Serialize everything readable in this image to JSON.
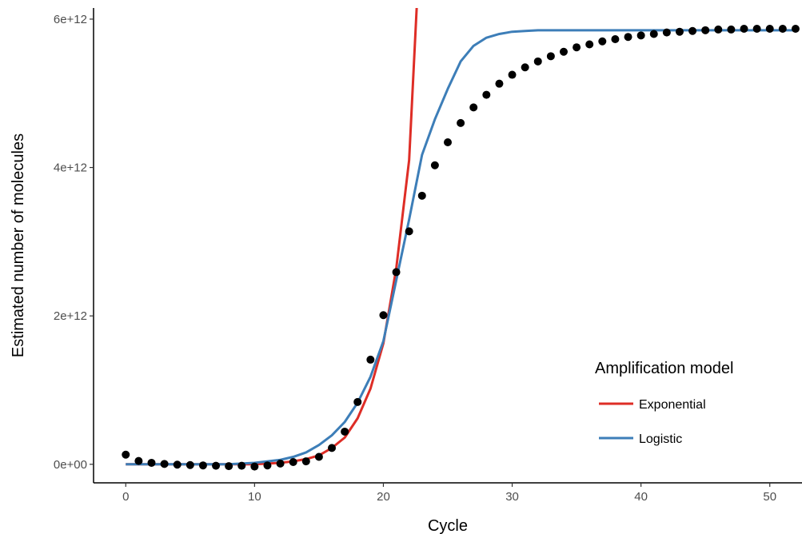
{
  "chart_data": {
    "type": "line",
    "xlabel": "Cycle",
    "ylabel": "Estimated number of molecules",
    "xlim": [
      -2.5,
      52.5
    ],
    "ylim": [
      -250000000000.0,
      6150000000000.0
    ],
    "x_ticks": [
      0,
      10,
      20,
      30,
      40,
      50
    ],
    "x_tick_labels": [
      "0",
      "10",
      "20",
      "30",
      "40",
      "50"
    ],
    "y_ticks": [
      0,
      2000000000000.0,
      4000000000000.0,
      6000000000000.0
    ],
    "y_tick_labels": [
      "0e+00",
      "2e+12",
      "4e+12",
      "6e+12"
    ],
    "grid": false,
    "legend": {
      "title": "Amplification model",
      "position": "bottom-right",
      "entries": [
        {
          "label": "Exponential",
          "color": "#de2d26"
        },
        {
          "label": "Logistic",
          "color": "#3d7eb8"
        }
      ]
    },
    "observed": {
      "marker": "point",
      "color": "#000000",
      "x": [
        0,
        1,
        2,
        3,
        4,
        5,
        6,
        7,
        8,
        9,
        10,
        11,
        12,
        13,
        14,
        15,
        16,
        17,
        18,
        19,
        20,
        21,
        22,
        23,
        24,
        25,
        26,
        27,
        28,
        29,
        30,
        31,
        32,
        33,
        34,
        35,
        36,
        37,
        38,
        39,
        40,
        41,
        42,
        43,
        44,
        45,
        46,
        47,
        48,
        49,
        50,
        51,
        52
      ],
      "y": [
        130000000000.0,
        45000000000.0,
        20000000000.0,
        5000000000.0,
        -5000000000.0,
        -10000000000.0,
        -15000000000.0,
        -20000000000.0,
        -25000000000.0,
        -20000000000.0,
        -30000000000.0,
        -15000000000.0,
        10000000000.0,
        30000000000.0,
        40000000000.0,
        100000000000.0,
        220000000000.0,
        440000000000.0,
        840000000000.0,
        1410000000000.0,
        2010000000000.0,
        2590000000000.0,
        3140000000000.0,
        3620000000000.0,
        4030000000000.0,
        4340000000000.0,
        4600000000000.0,
        4810000000000.0,
        4980000000000.0,
        5130000000000.0,
        5250000000000.0,
        5350000000000.0,
        5430000000000.0,
        5500000000000.0,
        5560000000000.0,
        5620000000000.0,
        5660000000000.0,
        5700000000000.0,
        5730000000000.0,
        5760000000000.0,
        5780000000000.0,
        5800000000000.0,
        5820000000000.0,
        5830000000000.0,
        5840000000000.0,
        5850000000000.0,
        5860000000000.0,
        5860000000000.0,
        5870000000000.0,
        5870000000000.0,
        5870000000000.0,
        5870000000000.0,
        5870000000000.0
      ]
    },
    "series": [
      {
        "name": "Exponential",
        "color": "#de2d26",
        "x": [
          0,
          1,
          2,
          3,
          4,
          5,
          6,
          7,
          8,
          9,
          10,
          11,
          12,
          13,
          14,
          15,
          16,
          17,
          18,
          19,
          20,
          21,
          22,
          22.6
        ],
        "y": [
          0,
          0,
          0,
          0,
          0,
          0,
          0,
          0,
          0,
          0,
          0,
          10000000000.0,
          20000000000.0,
          40000000000.0,
          70000000000.0,
          120000000000.0,
          220000000000.0,
          360000000000.0,
          620000000000.0,
          1020000000000.0,
          1630000000000.0,
          2640000000000.0,
          4100000000000.0,
          6200000000000.0
        ]
      },
      {
        "name": "Logistic",
        "color": "#3d7eb8",
        "x": [
          0,
          1,
          2,
          3,
          4,
          5,
          6,
          7,
          8,
          9,
          10,
          11,
          12,
          13,
          14,
          15,
          16,
          17,
          18,
          19,
          20,
          21,
          22,
          23,
          24,
          25,
          26,
          27,
          28,
          29,
          30,
          31,
          32,
          33,
          34,
          35,
          36,
          37,
          38,
          39,
          40,
          41,
          42,
          43,
          44,
          45,
          46,
          47,
          48,
          49,
          50,
          51,
          52
        ],
        "y": [
          0,
          0,
          0,
          0,
          0,
          0,
          0,
          0,
          0,
          10000000000.0,
          20000000000.0,
          40000000000.0,
          60000000000.0,
          100000000000.0,
          160000000000.0,
          260000000000.0,
          390000000000.0,
          570000000000.0,
          830000000000.0,
          1180000000000.0,
          1660000000000.0,
          2480000000000.0,
          3300000000000.0,
          4170000000000.0,
          4650000000000.0,
          5060000000000.0,
          5430000000000.0,
          5640000000000.0,
          5750000000000.0,
          5800000000000.0,
          5830000000000.0,
          5840000000000.0,
          5850000000000.0,
          5850000000000.0,
          5850000000000.0,
          5850000000000.0,
          5850000000000.0,
          5850000000000.0,
          5850000000000.0,
          5850000000000.0,
          5850000000000.0,
          5850000000000.0,
          5850000000000.0,
          5850000000000.0,
          5850000000000.0,
          5850000000000.0,
          5850000000000.0,
          5850000000000.0,
          5850000000000.0,
          5850000000000.0,
          5850000000000.0,
          5850000000000.0,
          5850000000000.0
        ]
      }
    ]
  }
}
